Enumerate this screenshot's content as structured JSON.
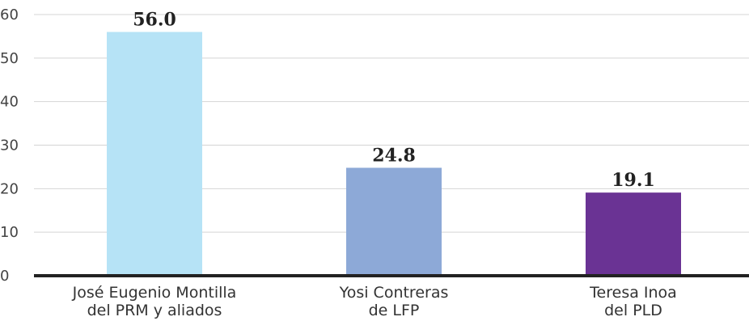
{
  "chart_data": {
    "type": "bar",
    "title": "",
    "xlabel": "",
    "ylabel": "",
    "ylim": [
      0,
      60
    ],
    "yticks": [
      0,
      10,
      20,
      30,
      40,
      50,
      60
    ],
    "grid": true,
    "categories": [
      [
        "José Eugenio Montilla",
        "del PRM y aliados"
      ],
      [
        "Yosi Contreras",
        "de LFP"
      ],
      [
        "Teresa Inoa",
        "del PLD"
      ]
    ],
    "values": [
      56.0,
      24.8,
      19.1
    ],
    "value_labels": [
      "56.0",
      "24.8",
      "19.1"
    ],
    "colors": [
      "#b6e3f6",
      "#8da9d7",
      "#6a3394"
    ]
  }
}
